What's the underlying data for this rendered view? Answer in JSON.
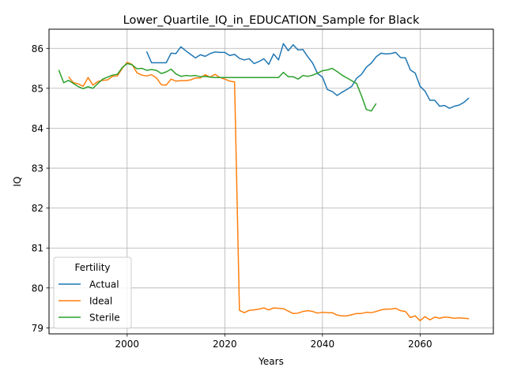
{
  "chart_data": {
    "type": "line",
    "title": "Lower_Quartile_IQ_in_EDUCATION_Sample for Black",
    "xlabel": "Years",
    "ylabel": "IQ",
    "xlim": [
      1984,
      2075
    ],
    "ylim": [
      78.85,
      86.48
    ],
    "xticks": [
      2000,
      2020,
      2040,
      2060
    ],
    "yticks": [
      79,
      80,
      81,
      82,
      83,
      84,
      85,
      86
    ],
    "grid": true,
    "legend": {
      "title": "Fertility",
      "placement": "lower-left"
    },
    "series": [
      {
        "name": "Actual",
        "color": "#1f77b4",
        "x": [
          2004,
          2005,
          2006,
          2007,
          2008,
          2009,
          2010,
          2011,
          2012,
          2013,
          2014,
          2015,
          2016,
          2017,
          2018,
          2019,
          2020,
          2021,
          2022,
          2023,
          2024,
          2025,
          2026,
          2027,
          2028,
          2029,
          2030,
          2031,
          2032,
          2033,
          2034,
          2035,
          2036,
          2037,
          2038,
          2039,
          2040,
          2041,
          2042,
          2043,
          2044,
          2045,
          2046,
          2047,
          2048,
          2049,
          2050,
          2051,
          2052,
          2053,
          2054,
          2055,
          2056,
          2057,
          2058,
          2059,
          2060,
          2061,
          2062,
          2063,
          2064,
          2065,
          2066,
          2067,
          2068,
          2069,
          2070
        ],
        "y": [
          85.92,
          85.64,
          85.64,
          85.64,
          85.64,
          85.88,
          85.87,
          86.04,
          85.94,
          85.85,
          85.76,
          85.84,
          85.8,
          85.87,
          85.91,
          85.9,
          85.9,
          85.82,
          85.85,
          85.75,
          85.71,
          85.74,
          85.62,
          85.67,
          85.74,
          85.6,
          85.86,
          85.71,
          86.12,
          85.94,
          86.09,
          85.96,
          85.97,
          85.79,
          85.63,
          85.37,
          85.28,
          84.97,
          84.92,
          84.82,
          84.9,
          84.97,
          85.05,
          85.25,
          85.35,
          85.53,
          85.63,
          85.79,
          85.88,
          85.86,
          85.87,
          85.9,
          85.77,
          85.76,
          85.46,
          85.38,
          85.05,
          84.93,
          84.7,
          84.7,
          84.55,
          84.57,
          84.5,
          84.55,
          84.58,
          84.65,
          84.76
        ]
      },
      {
        "name": "Ideal",
        "color": "#ff7f0e",
        "x": [
          1988,
          1989,
          1990,
          1991,
          1992,
          1993,
          1994,
          1995,
          1996,
          1997,
          1998,
          1999,
          2000,
          2001,
          2002,
          2003,
          2004,
          2005,
          2006,
          2007,
          2008,
          2009,
          2010,
          2011,
          2012,
          2013,
          2014,
          2015,
          2016,
          2017,
          2018,
          2019,
          2020,
          2021,
          2022,
          2023,
          2024,
          2025,
          2026,
          2027,
          2028,
          2029,
          2030,
          2031,
          2032,
          2033,
          2034,
          2035,
          2036,
          2037,
          2038,
          2039,
          2040,
          2041,
          2042,
          2043,
          2044,
          2045,
          2046,
          2047,
          2048,
          2049,
          2050,
          2051,
          2052,
          2053,
          2054,
          2055,
          2056,
          2057,
          2058,
          2059,
          2060,
          2061,
          2062,
          2063,
          2064,
          2065,
          2066,
          2067,
          2068,
          2069,
          2070
        ],
        "y": [
          85.29,
          85.14,
          85.11,
          85.05,
          85.27,
          85.08,
          85.17,
          85.2,
          85.21,
          85.3,
          85.31,
          85.5,
          85.65,
          85.6,
          85.39,
          85.33,
          85.31,
          85.34,
          85.26,
          85.09,
          85.08,
          85.23,
          85.18,
          85.19,
          85.19,
          85.21,
          85.26,
          85.26,
          85.34,
          85.28,
          85.35,
          85.27,
          85.23,
          85.18,
          85.16,
          79.44,
          79.38,
          79.44,
          79.45,
          79.47,
          79.5,
          79.45,
          79.5,
          79.49,
          79.48,
          79.42,
          79.36,
          79.37,
          79.41,
          79.43,
          79.41,
          79.37,
          79.39,
          79.38,
          79.38,
          79.32,
          79.3,
          79.3,
          79.33,
          79.36,
          79.36,
          79.39,
          79.38,
          79.41,
          79.45,
          79.47,
          79.47,
          79.49,
          79.43,
          79.41,
          79.26,
          79.3,
          79.18,
          79.28,
          79.2,
          79.27,
          79.24,
          79.27,
          79.26,
          79.24,
          79.25,
          79.24,
          79.23
        ]
      },
      {
        "name": "Sterile",
        "color": "#2ca02c",
        "x": [
          1986,
          1987,
          1988,
          1989,
          1990,
          1991,
          1992,
          1993,
          1994,
          1995,
          1996,
          1997,
          1998,
          1999,
          2000,
          2001,
          2002,
          2003,
          2004,
          2005,
          2006,
          2007,
          2008,
          2009,
          2010,
          2011,
          2012,
          2013,
          2014,
          2015,
          2016,
          2017,
          2018,
          2019,
          2020,
          2021,
          2022,
          2023,
          2024,
          2025,
          2026,
          2027,
          2028,
          2029,
          2030,
          2031,
          2032,
          2033,
          2034,
          2035,
          2036,
          2037,
          2038,
          2039,
          2040,
          2041,
          2042,
          2043,
          2044,
          2045,
          2046,
          2047,
          2048,
          2049,
          2050,
          2051
        ],
        "y": [
          85.46,
          85.14,
          85.2,
          85.12,
          85.04,
          84.99,
          85.04,
          85.0,
          85.12,
          85.23,
          85.28,
          85.33,
          85.35,
          85.52,
          85.62,
          85.59,
          85.49,
          85.5,
          85.45,
          85.47,
          85.45,
          85.37,
          85.41,
          85.48,
          85.36,
          85.3,
          85.32,
          85.31,
          85.32,
          85.29,
          85.3,
          85.28,
          85.27,
          85.27,
          85.27,
          85.27,
          85.27,
          85.27,
          85.27,
          85.27,
          85.27,
          85.27,
          85.27,
          85.27,
          85.27,
          85.27,
          85.4,
          85.29,
          85.29,
          85.23,
          85.32,
          85.3,
          85.33,
          85.38,
          85.44,
          85.46,
          85.5,
          85.42,
          85.33,
          85.26,
          85.19,
          85.12,
          84.81,
          84.47,
          84.43,
          84.62
        ]
      }
    ]
  }
}
